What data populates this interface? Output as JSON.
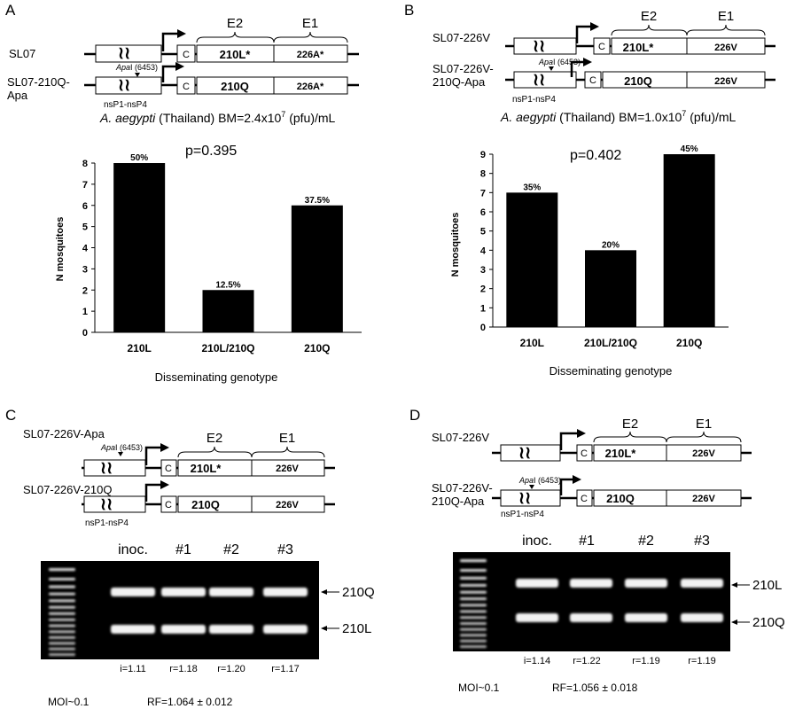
{
  "panels": {
    "A": {
      "letter": "A",
      "construct_top": "SL07",
      "construct_bottom_l1": "SL07-210Q-",
      "construct_bottom_l2": "Apa",
      "exon_e2": "E2",
      "exon_e1": "E1",
      "c_label": "C",
      "top_e2": "210L*",
      "top_e1": "226A*",
      "bottom_e2": "210Q",
      "bottom_e1": "226A*",
      "apa_italic": "Apa",
      "apa_suffix": "I (6453)",
      "nsp_label": "nsP1-nsP4",
      "bm_italic": "A. aegypti",
      "bm_text": " (Thailand) BM=2.4x10",
      "bm_exp": "7",
      "bm_unit": " (pfu)/mL",
      "p_value": "p=0.395",
      "y_label": "N mosquitoes",
      "x_label": "Disseminating genotype"
    },
    "B": {
      "letter": "B",
      "construct_top": "SL07-226V",
      "construct_bottom_l1": "SL07-226V-",
      "construct_bottom_l2": "210Q-Apa",
      "exon_e2": "E2",
      "exon_e1": "E1",
      "c_label": "C",
      "top_e2": "210L*",
      "top_e1": "226V",
      "bottom_e2": "210Q",
      "bottom_e1": "226V",
      "apa_italic": "Apa",
      "apa_suffix": "I (6453)",
      "nsp_label": "nsP1-nsP4",
      "bm_italic": "A. aegypti",
      "bm_text": " (Thailand) BM=1.0x10",
      "bm_exp": "7",
      "bm_unit": " (pfu)/mL",
      "p_value": "p=0.402",
      "y_label": "N mosquitoes",
      "x_label": "Disseminating genotype"
    },
    "C": {
      "letter": "C",
      "construct_top": "SL07-226V-Apa",
      "construct_bottom": "SL07-226V-210Q",
      "exon_e2": "E2",
      "exon_e1": "E1",
      "c_label": "C",
      "top_e2": "210L*",
      "top_e1": "226V",
      "bottom_e2": "210Q",
      "bottom_e1": "226V",
      "apa_italic": "Apa",
      "apa_suffix": "I (6453)",
      "nsp_label": "nsP1-nsP4",
      "lanes": [
        "inoc.",
        "#1",
        "#2",
        "#3"
      ],
      "band_upper": "210Q",
      "band_lower": "210L",
      "ratios": [
        "i=1.11",
        "r=1.18",
        "r=1.20",
        "r=1.17"
      ],
      "moi": "MOI~0.1",
      "rf": "RF=1.064 ± 0.012"
    },
    "D": {
      "letter": "D",
      "construct_top": "SL07-226V",
      "construct_bottom_l1": "SL07-226V-",
      "construct_bottom_l2": "210Q-Apa",
      "exon_e2": "E2",
      "exon_e1": "E1",
      "c_label": "C",
      "top_e2": "210L*",
      "top_e1": "226V",
      "bottom_e2": "210Q",
      "bottom_e1": "226V",
      "apa_italic": "Apa",
      "apa_suffix": "I (6453)",
      "nsp_label": "nsP1-nsP4",
      "lanes": [
        "inoc.",
        "#1",
        "#2",
        "#3"
      ],
      "band_upper": "210L",
      "band_lower": "210Q",
      "ratios": [
        "i=1.14",
        "r=1.22",
        "r=1.19",
        "r=1.19"
      ],
      "moi": "MOI~0.1",
      "rf": "RF=1.056 ± 0.018"
    }
  },
  "chart_data": [
    {
      "type": "bar",
      "panel": "A",
      "categories": [
        "210L",
        "210L/210Q",
        "210Q"
      ],
      "values": [
        8,
        2,
        6
      ],
      "data_labels": [
        "50%",
        "12.5%",
        "37.5%"
      ],
      "ylabel": "N mosquitoes",
      "xlabel": "Disseminating genotype",
      "ylim": [
        0,
        8
      ],
      "yticks": [
        0,
        1,
        2,
        3,
        4,
        5,
        6,
        7,
        8
      ],
      "bar_color": "#000000"
    },
    {
      "type": "bar",
      "panel": "B",
      "categories": [
        "210L",
        "210L/210Q",
        "210Q"
      ],
      "values": [
        7,
        4,
        9
      ],
      "data_labels": [
        "35%",
        "20%",
        "45%"
      ],
      "ylabel": "N mosquitoes",
      "xlabel": "Disseminating genotype",
      "ylim": [
        0,
        9
      ],
      "yticks": [
        0,
        1,
        2,
        3,
        4,
        5,
        6,
        7,
        8,
        9
      ],
      "bar_color": "#000000"
    }
  ]
}
